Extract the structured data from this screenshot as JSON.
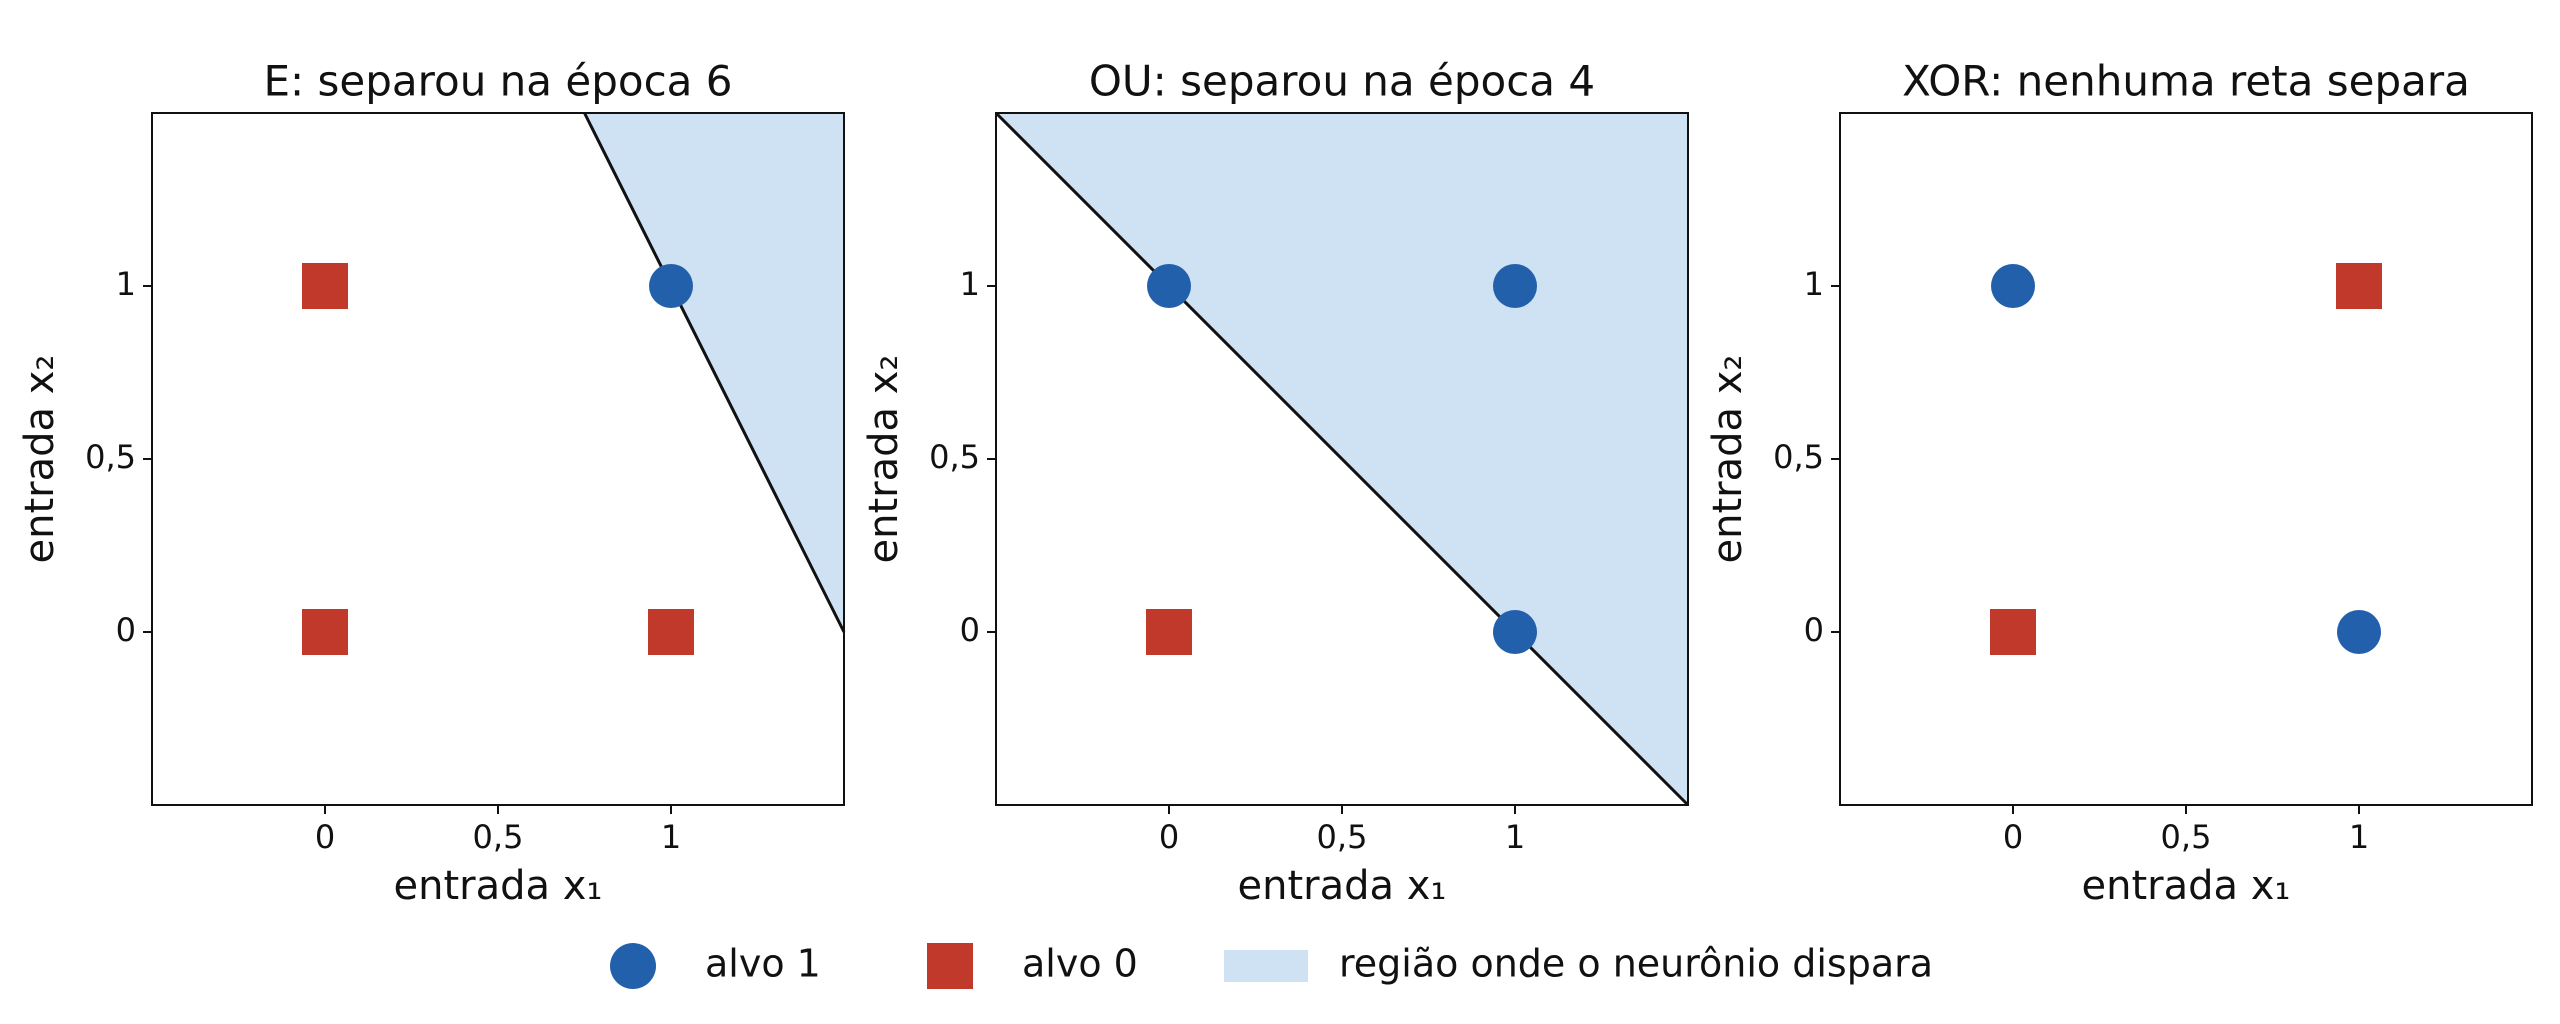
{
  "chart_data": [
    {
      "type": "scatter",
      "title": "E: separou na época 6",
      "xlabel": "entrada x₁",
      "ylabel": "entrada x₂",
      "xlim": [
        -0.5,
        1.5
      ],
      "ylim": [
        -0.5,
        1.5
      ],
      "xticks": [
        0,
        {
          "value": 0.5,
          "label": "0,5"
        },
        1
      ],
      "yticks": [
        0,
        {
          "value": 0.5,
          "label": "0,5"
        },
        1
      ],
      "series": [
        {
          "name": "alvo 1",
          "marker": "circle",
          "color": "#2360ab",
          "x": [
            1
          ],
          "y": [
            1
          ]
        },
        {
          "name": "alvo 0",
          "marker": "square",
          "color": "#c0392b",
          "x": [
            0,
            0,
            1
          ],
          "y": [
            1,
            0,
            0
          ]
        }
      ],
      "region": {
        "name": "região onde o neurônio dispara",
        "color": "#cfe2f3",
        "x": [
          0.75,
          1.5
        ],
        "y": [
          1.5,
          0
        ]
      }
    },
    {
      "type": "scatter",
      "title": "OU: separou na época 4",
      "xlabel": "entrada x₁",
      "ylabel": "entrada x₂",
      "xlim": [
        -0.5,
        1.5
      ],
      "ylim": [
        -0.5,
        1.5
      ],
      "xticks": [
        0,
        {
          "value": 0.5,
          "label": "0,5"
        },
        1
      ],
      "yticks": [
        0,
        {
          "value": 0.5,
          "label": "0,5"
        },
        1
      ],
      "series": [
        {
          "name": "alvo 1",
          "marker": "circle",
          "color": "#2360ab",
          "x": [
            0,
            1,
            1
          ],
          "y": [
            1,
            1,
            0
          ]
        },
        {
          "name": "alvo 0",
          "marker": "square",
          "color": "#c0392b",
          "x": [
            0
          ],
          "y": [
            0
          ]
        }
      ],
      "region": {
        "name": "região onde o neurônio dispara",
        "color": "#cfe2f3",
        "x": [
          -0.5,
          1.5
        ],
        "y": [
          1.5,
          -0.5
        ]
      }
    },
    {
      "type": "scatter",
      "title": "XOR: nenhuma reta separa",
      "xlabel": "entrada x₁",
      "ylabel": "entrada x₂",
      "xlim": [
        -0.5,
        1.5
      ],
      "ylim": [
        -0.5,
        1.5
      ],
      "xticks": [
        0,
        {
          "value": 0.5,
          "label": "0,5"
        },
        1
      ],
      "yticks": [
        0,
        {
          "value": 0.5,
          "label": "0,5"
        },
        1
      ],
      "series": [
        {
          "name": "alvo 1",
          "marker": "circle",
          "color": "#2360ab",
          "x": [
            0,
            1
          ],
          "y": [
            1,
            0
          ]
        },
        {
          "name": "alvo 0",
          "marker": "square",
          "color": "#c0392b",
          "x": [
            1,
            0
          ],
          "y": [
            1,
            0
          ]
        }
      ]
    }
  ]
}
